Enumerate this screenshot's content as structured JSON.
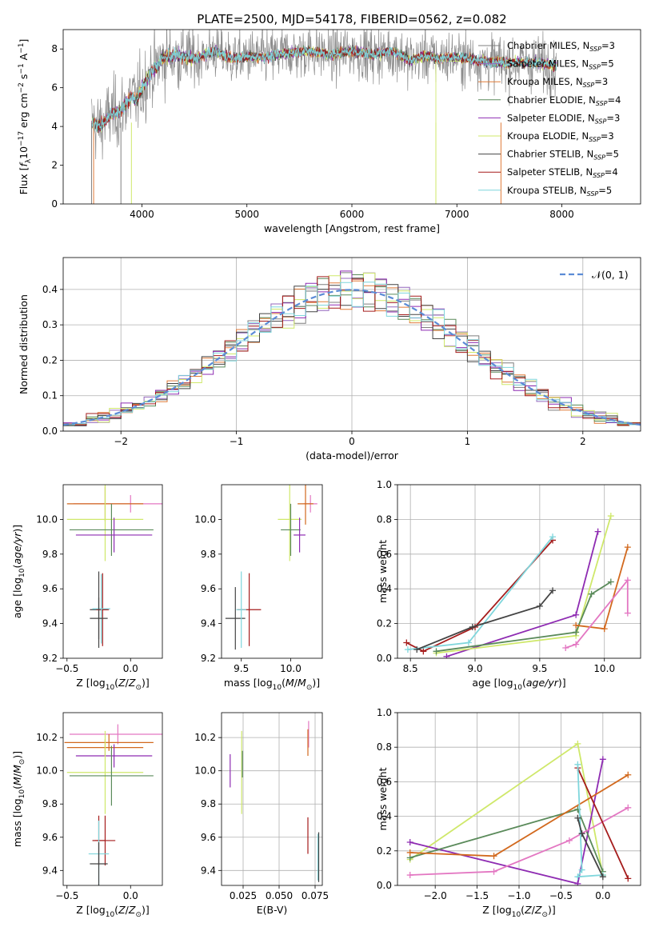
{
  "figure": {
    "title": "PLATE=2500, MJD=54178, FIBERID=0562, z=0.082"
  },
  "colors": {
    "chabrier_miles": "#7f7f7f",
    "salpeter_miles": "#9467bd",
    "kroupa_miles": "#e07b39",
    "chabrier_elodie": "#5a8a5a",
    "salpeter_elodie": "#8e2bb2",
    "kroupa_elodie": "#cfe86a",
    "chabrier_stelib": "#444444",
    "salpeter_stelib": "#a51c1c",
    "kroupa_stelib": "#7fd6dc",
    "pink": "#e377c2",
    "orange2": "#d2691e",
    "normal_curve": "#5b8bd6"
  },
  "chart_data": [
    {
      "id": "spectrum",
      "type": "line",
      "xlabel": "wavelength [Angstrom, rest frame]",
      "ylabel": "Flux [f_λ10^-17 erg cm^-2 s^-1 A^-1]",
      "xlim": [
        3250,
        8750
      ],
      "ylim": [
        0,
        9
      ],
      "xticks": [
        4000,
        5000,
        6000,
        7000,
        8000
      ],
      "yticks": [
        0,
        2,
        4,
        6,
        8
      ],
      "legend_position": "right",
      "legend": [
        {
          "label": "Chabrier MILES, N_SSP=3",
          "color_key": "chabrier_miles"
        },
        {
          "label": "Salpeter MILES, N_SSP=5",
          "color_key": "salpeter_miles"
        },
        {
          "label": "Kroupa MILES, N_SSP=3",
          "color_key": "kroupa_miles"
        },
        {
          "label": "Chabrier ELODIE, N_SSP=4",
          "color_key": "chabrier_elodie"
        },
        {
          "label": "Salpeter ELODIE, N_SSP=3",
          "color_key": "salpeter_elodie"
        },
        {
          "label": "Kroupa ELODIE, N_SSP=3",
          "color_key": "kroupa_elodie"
        },
        {
          "label": "Chabrier STELIB, N_SSP=5",
          "color_key": "chabrier_stelib"
        },
        {
          "label": "Salpeter STELIB, N_SSP=4",
          "color_key": "salpeter_stelib"
        },
        {
          "label": "Kroupa STELIB, N_SSP=5",
          "color_key": "kroupa_stelib"
        }
      ],
      "envelope": {
        "x": [
          3520,
          3600,
          3700,
          3800,
          3900,
          3950,
          4000,
          4100,
          4200,
          4300,
          4500,
          4700,
          4860,
          5000,
          5200,
          5400,
          5600,
          5800,
          6000,
          6200,
          6400,
          6563,
          6700,
          6800,
          7000,
          7200,
          7400,
          7600,
          7800,
          7950
        ],
        "y": [
          4.2,
          4.0,
          4.6,
          4.8,
          5.6,
          5.3,
          6.0,
          6.9,
          7.5,
          7.7,
          7.5,
          7.9,
          7.5,
          7.6,
          7.6,
          7.8,
          7.9,
          7.7,
          7.9,
          7.7,
          7.9,
          7.4,
          7.7,
          7.5,
          7.6,
          7.4,
          7.3,
          7.3,
          7.3,
          7.1
        ]
      }
    },
    {
      "id": "residuals",
      "type": "histogram",
      "xlabel": "(data-model)/error",
      "ylabel": "Normed distribution",
      "xlim": [
        -2.5,
        2.5
      ],
      "ylim": [
        0,
        0.49
      ],
      "xticks": [
        -2,
        -1,
        0,
        1,
        2
      ],
      "yticks": [
        0.0,
        0.1,
        0.2,
        0.3,
        0.4
      ],
      "legend": [
        {
          "label": "𝒩(0, 1)",
          "color_key": "normal_curve",
          "style": "dashed"
        }
      ],
      "bins": {
        "start": -2.6,
        "width": 0.1,
        "count": 52
      },
      "reference_curve": "normal pdf mean 0 sigma 1"
    },
    {
      "id": "age_vs_Z",
      "type": "errorbar",
      "xlabel": "Z [log10(Z/Z⊙)]",
      "ylabel": "age  [log10(age/yr)]",
      "xlim": [
        -0.53,
        0.25
      ],
      "ylim": [
        9.2,
        10.2
      ],
      "xticks": [
        -0.5,
        0.0
      ],
      "yticks": [
        9.2,
        9.4,
        9.6,
        9.8,
        10.0
      ],
      "points": [
        {
          "x": 0.0,
          "y": 10.09,
          "xerr": 0.45,
          "yerr": 0.05,
          "color_key": "pink"
        },
        {
          "x": -0.2,
          "y": 10.09,
          "xerr": 0.3,
          "yerr": 0.1,
          "color_key": "orange2"
        },
        {
          "x": -0.2,
          "y": 10.0,
          "xerr": 0.3,
          "yerr": 0.24,
          "color_key": "kroupa_elodie"
        },
        {
          "x": -0.15,
          "y": 9.94,
          "xerr": 0.33,
          "yerr": 0.15,
          "color_key": "chabrier_elodie"
        },
        {
          "x": -0.13,
          "y": 9.91,
          "xerr": 0.3,
          "yerr": 0.1,
          "color_key": "salpeter_elodie"
        },
        {
          "x": -0.25,
          "y": 9.48,
          "xerr": 0.07,
          "yerr": 0.22,
          "color_key": "chabrier_stelib"
        },
        {
          "x": -0.22,
          "y": 9.48,
          "xerr": 0.05,
          "yerr": 0.21,
          "color_key": "salpeter_stelib"
        },
        {
          "x": -0.23,
          "y": 9.485,
          "xerr": 0.07,
          "yerr": 0.2,
          "color_key": "kroupa_stelib"
        },
        {
          "x": -0.25,
          "y": 9.43,
          "xerr": 0.07,
          "yerr": 0.12,
          "color_key": "chabrier_stelib"
        }
      ]
    },
    {
      "id": "age_vs_mass",
      "type": "errorbar",
      "xlabel": "mass [log10(M/M⊙)]",
      "ylabel": "",
      "xlim": [
        9.3,
        10.32
      ],
      "ylim": [
        9.2,
        10.2
      ],
      "xticks": [
        9.5,
        10.0
      ],
      "yticks": [
        9.2,
        9.4,
        9.6,
        9.8,
        10.0
      ],
      "points": [
        {
          "x": 10.2,
          "y": 10.09,
          "xerr": 0.07,
          "yerr": 0.05,
          "color_key": "pink"
        },
        {
          "x": 10.15,
          "y": 10.09,
          "xerr": 0.08,
          "yerr": 0.12,
          "color_key": "orange2"
        },
        {
          "x": 9.99,
          "y": 10.0,
          "xerr": 0.12,
          "yerr": 0.24,
          "color_key": "kroupa_elodie"
        },
        {
          "x": 10.0,
          "y": 9.94,
          "xerr": 0.1,
          "yerr": 0.15,
          "color_key": "chabrier_elodie"
        },
        {
          "x": 10.09,
          "y": 9.91,
          "xerr": 0.06,
          "yerr": 0.1,
          "color_key": "salpeter_elodie"
        },
        {
          "x": 9.44,
          "y": 9.43,
          "xerr": 0.1,
          "yerr": 0.18,
          "color_key": "chabrier_stelib"
        },
        {
          "x": 9.58,
          "y": 9.48,
          "xerr": 0.12,
          "yerr": 0.21,
          "color_key": "salpeter_stelib"
        },
        {
          "x": 9.5,
          "y": 9.48,
          "xerr": 0.05,
          "yerr": 0.22,
          "color_key": "kroupa_stelib"
        }
      ]
    },
    {
      "id": "mass_weight_vs_age",
      "type": "line",
      "xlabel": "age  [log10(age/yr)]",
      "ylabel": "mass weight",
      "xlim": [
        8.4,
        10.28
      ],
      "ylim": [
        0.0,
        1.0
      ],
      "xticks": [
        8.5,
        9.0,
        9.5,
        10.0
      ],
      "yticks": [
        0.0,
        0.2,
        0.4,
        0.6,
        0.8,
        1.0
      ],
      "series": [
        {
          "color_key": "salpeter_stelib",
          "x": [
            8.47,
            8.6,
            9.0,
            9.6
          ],
          "y": [
            0.09,
            0.04,
            0.18,
            0.68
          ]
        },
        {
          "color_key": "kroupa_stelib",
          "x": [
            8.48,
            8.95,
            9.6
          ],
          "y": [
            0.05,
            0.09,
            0.7
          ]
        },
        {
          "color_key": "chabrier_stelib",
          "x": [
            8.55,
            8.98,
            9.5,
            9.6
          ],
          "y": [
            0.05,
            0.18,
            0.3,
            0.39
          ]
        },
        {
          "color_key": "salpeter_elodie",
          "x": [
            8.78,
            9.78,
            9.95
          ],
          "y": [
            0.01,
            0.25,
            0.73
          ]
        },
        {
          "color_key": "kroupa_elodie",
          "x": [
            8.7,
            9.78,
            10.05
          ],
          "y": [
            0.03,
            0.13,
            0.82
          ]
        },
        {
          "color_key": "chabrier_elodie",
          "x": [
            8.7,
            9.78,
            9.9,
            10.05
          ],
          "y": [
            0.04,
            0.15,
            0.37,
            0.44
          ]
        },
        {
          "color_key": "orange2",
          "x": [
            9.78,
            10.0,
            10.18
          ],
          "y": [
            0.19,
            0.17,
            0.64
          ]
        },
        {
          "color_key": "pink",
          "x": [
            9.7,
            9.78,
            10.18,
            10.18
          ],
          "y": [
            0.06,
            0.08,
            0.45,
            0.26
          ]
        }
      ]
    },
    {
      "id": "mass_vs_Z",
      "type": "errorbar",
      "xlabel": "Z [log10(Z/Z⊙)]",
      "ylabel": "mass [log10(M/M⊙)]",
      "xlim": [
        -0.53,
        0.25
      ],
      "ylim": [
        9.31,
        10.35
      ],
      "xticks": [
        -0.5,
        0.0
      ],
      "yticks": [
        9.4,
        9.6,
        9.8,
        10.0,
        10.2
      ],
      "points": [
        {
          "x": -0.1,
          "y": 10.22,
          "xerr": 0.38,
          "yerr": 0.06,
          "color_key": "pink"
        },
        {
          "x": -0.17,
          "y": 10.17,
          "xerr": 0.35,
          "yerr": 0.05,
          "color_key": "orange2"
        },
        {
          "x": -0.2,
          "y": 10.14,
          "xerr": 0.3,
          "yerr": 0.05,
          "color_key": "orange2"
        },
        {
          "x": -0.13,
          "y": 10.09,
          "xerr": 0.3,
          "yerr": 0.07,
          "color_key": "salpeter_elodie"
        },
        {
          "x": -0.2,
          "y": 9.99,
          "xerr": 0.3,
          "yerr": 0.25,
          "color_key": "kroupa_elodie"
        },
        {
          "x": -0.15,
          "y": 9.97,
          "xerr": 0.33,
          "yerr": 0.18,
          "color_key": "chabrier_elodie"
        },
        {
          "x": -0.25,
          "y": 9.58,
          "xerr": 0.05,
          "yerr": 0.15,
          "color_key": "salpeter_stelib"
        },
        {
          "x": -0.2,
          "y": 9.58,
          "xerr": 0.08,
          "yerr": 0.15,
          "color_key": "salpeter_stelib"
        },
        {
          "x": -0.25,
          "y": 9.5,
          "xerr": 0.08,
          "yerr": 0.2,
          "color_key": "kroupa_stelib"
        },
        {
          "x": -0.25,
          "y": 9.44,
          "xerr": 0.07,
          "yerr": 0.13,
          "color_key": "chabrier_stelib"
        }
      ]
    },
    {
      "id": "mass_vs_ebv",
      "type": "errorbar",
      "xlabel": "E(B-V)",
      "ylabel": "",
      "xlim": [
        0.01,
        0.08
      ],
      "ylim": [
        9.31,
        10.35
      ],
      "xticks": [
        0.025,
        0.05,
        0.075
      ],
      "yticks": [
        9.4,
        9.6,
        9.8,
        10.0,
        10.2
      ],
      "points": [
        {
          "x": 0.0705,
          "y": 10.22,
          "yerr": 0.08,
          "color_key": "pink"
        },
        {
          "x": 0.07,
          "y": 10.17,
          "yerr": 0.08,
          "color_key": "orange2"
        },
        {
          "x": 0.016,
          "y": 10.0,
          "yerr": 0.1,
          "color_key": "salpeter_elodie"
        },
        {
          "x": 0.024,
          "y": 9.99,
          "yerr": 0.25,
          "color_key": "kroupa_elodie"
        },
        {
          "x": 0.0245,
          "y": 10.04,
          "yerr": 0.08,
          "color_key": "chabrier_elodie"
        },
        {
          "x": 0.07,
          "y": 9.61,
          "yerr": 0.11,
          "color_key": "salpeter_stelib"
        },
        {
          "x": 0.077,
          "y": 9.48,
          "yerr": 0.14,
          "color_key": "kroupa_stelib"
        },
        {
          "x": 0.0775,
          "y": 9.48,
          "yerr": 0.15,
          "color_key": "chabrier_stelib"
        }
      ]
    },
    {
      "id": "mass_weight_vs_Z",
      "type": "line",
      "xlabel": "Z [log10(Z/Z⊙)]",
      "ylabel": "mass weight",
      "xlim": [
        -2.45,
        0.45
      ],
      "ylim": [
        0.0,
        1.0
      ],
      "xticks": [
        -2.0,
        -1.5,
        -1.0,
        -0.5,
        0.0
      ],
      "yticks": [
        0.0,
        0.2,
        0.4,
        0.6,
        0.8,
        1.0
      ],
      "series": [
        {
          "color_key": "kroupa_elodie",
          "x": [
            -2.3,
            -0.3,
            0.0
          ],
          "y": [
            0.15,
            0.82,
            0.06
          ]
        },
        {
          "color_key": "salpeter_elodie",
          "x": [
            -2.3,
            -0.3,
            0.0
          ],
          "y": [
            0.25,
            0.01,
            0.73
          ]
        },
        {
          "color_key": "chabrier_elodie",
          "x": [
            -2.3,
            -0.3,
            0.0
          ],
          "y": [
            0.16,
            0.44,
            0.08
          ]
        },
        {
          "color_key": "orange2",
          "x": [
            -2.3,
            -1.3,
            0.3
          ],
          "y": [
            0.19,
            0.17,
            0.64
          ]
        },
        {
          "color_key": "pink",
          "x": [
            -2.3,
            -1.3,
            -0.4,
            0.3
          ],
          "y": [
            0.06,
            0.08,
            0.26,
            0.45
          ]
        },
        {
          "color_key": "salpeter_stelib",
          "x": [
            -0.3,
            0.3
          ],
          "y": [
            0.68,
            0.04
          ]
        },
        {
          "color_key": "kroupa_stelib",
          "x": [
            -0.3,
            -0.25,
            -0.3,
            0.0
          ],
          "y": [
            0.7,
            0.09,
            0.05,
            0.06
          ]
        },
        {
          "color_key": "chabrier_stelib",
          "x": [
            -0.3,
            -0.25,
            0.0
          ],
          "y": [
            0.39,
            0.3,
            0.05
          ]
        }
      ]
    }
  ]
}
